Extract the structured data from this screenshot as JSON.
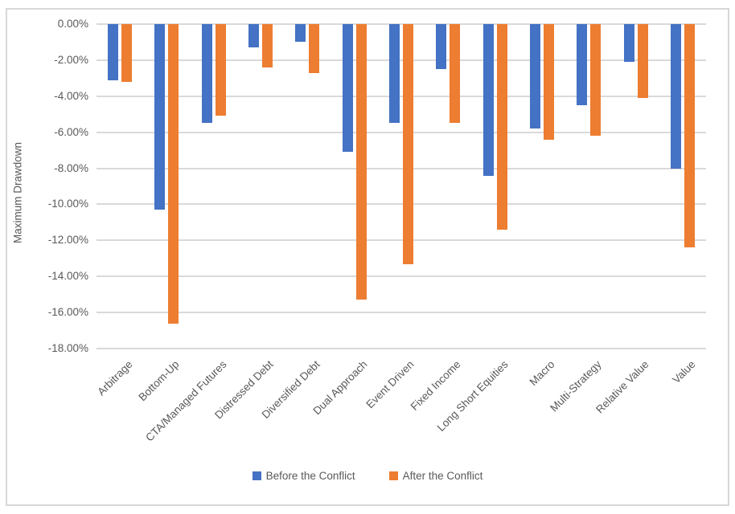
{
  "chart_data": {
    "type": "bar",
    "orientation": "vertical-negative",
    "ylabel": "Maximum Drawdown",
    "xlabel": "",
    "title": "",
    "ylim": [
      -18,
      0
    ],
    "ytick_step": 2,
    "yticks": [
      "0.00%",
      "-2.00%",
      "-4.00%",
      "-6.00%",
      "-8.00%",
      "-10.00%",
      "-12.00%",
      "-14.00%",
      "-16.00%",
      "-18.00%"
    ],
    "grid": true,
    "legend_position": "bottom",
    "categories": [
      "Arbitrage",
      "Bottom-Up",
      "CTA/Managed Futures",
      "Distressed Debt",
      "Diversified Debt",
      "Dual Approach",
      "Event Driven",
      "Fixed Income",
      "Long Short Equities",
      "Macro",
      "Multi-Strategy",
      "Relative Value",
      "Value"
    ],
    "series": [
      {
        "name": "Before the Conflict",
        "color": "#4472C4",
        "values": [
          -3.1,
          -10.3,
          -5.5,
          -1.3,
          -1.0,
          -7.1,
          -5.5,
          -2.5,
          -8.4,
          -5.8,
          -4.5,
          -2.1,
          -8.0
        ]
      },
      {
        "name": "After the Conflict",
        "color": "#ED7D31",
        "values": [
          -3.2,
          -16.6,
          -5.1,
          -2.4,
          -2.7,
          -15.3,
          -13.3,
          -5.5,
          -11.4,
          -6.4,
          -6.2,
          -4.1,
          -12.4
        ]
      }
    ],
    "colors": {
      "gridline": "#d9d9d9",
      "axis_text": "#595959",
      "frame_border": "#d8d8d8",
      "background": "#ffffff"
    }
  }
}
